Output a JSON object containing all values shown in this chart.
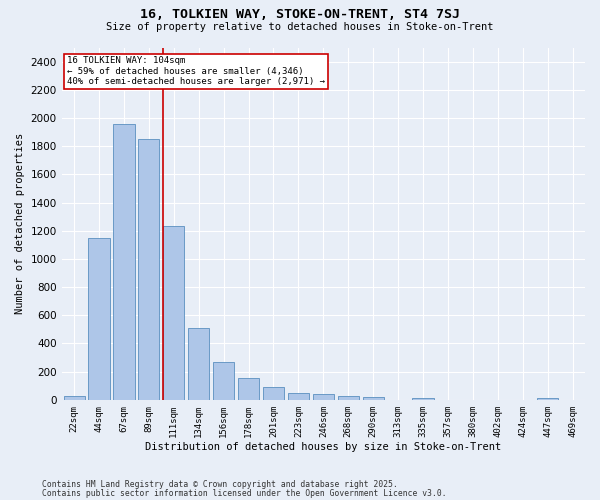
{
  "title1": "16, TOLKIEN WAY, STOKE-ON-TRENT, ST4 7SJ",
  "title2": "Size of property relative to detached houses in Stoke-on-Trent",
  "xlabel": "Distribution of detached houses by size in Stoke-on-Trent",
  "ylabel": "Number of detached properties",
  "categories": [
    "22sqm",
    "44sqm",
    "67sqm",
    "89sqm",
    "111sqm",
    "134sqm",
    "156sqm",
    "178sqm",
    "201sqm",
    "223sqm",
    "246sqm",
    "268sqm",
    "290sqm",
    "313sqm",
    "335sqm",
    "357sqm",
    "380sqm",
    "402sqm",
    "424sqm",
    "447sqm",
    "469sqm"
  ],
  "values": [
    25,
    1150,
    1960,
    1850,
    1230,
    510,
    270,
    155,
    90,
    47,
    40,
    25,
    18,
    0,
    15,
    0,
    0,
    0,
    0,
    14,
    0
  ],
  "bar_color": "#aec6e8",
  "bar_edge_color": "#5a8fc0",
  "bg_color": "#e8eef7",
  "grid_color": "#ffffff",
  "annotation_line1": "16 TOLKIEN WAY: 104sqm",
  "annotation_line2": "← 59% of detached houses are smaller (4,346)",
  "annotation_line3": "40% of semi-detached houses are larger (2,971) →",
  "annotation_box_color": "#ffffff",
  "annotation_box_edge": "#cc0000",
  "vline_color": "#cc0000",
  "vline_x": 3.57,
  "ylim": [
    0,
    2500
  ],
  "yticks": [
    0,
    200,
    400,
    600,
    800,
    1000,
    1200,
    1400,
    1600,
    1800,
    2000,
    2200,
    2400
  ],
  "footer1": "Contains HM Land Registry data © Crown copyright and database right 2025.",
  "footer2": "Contains public sector information licensed under the Open Government Licence v3.0."
}
